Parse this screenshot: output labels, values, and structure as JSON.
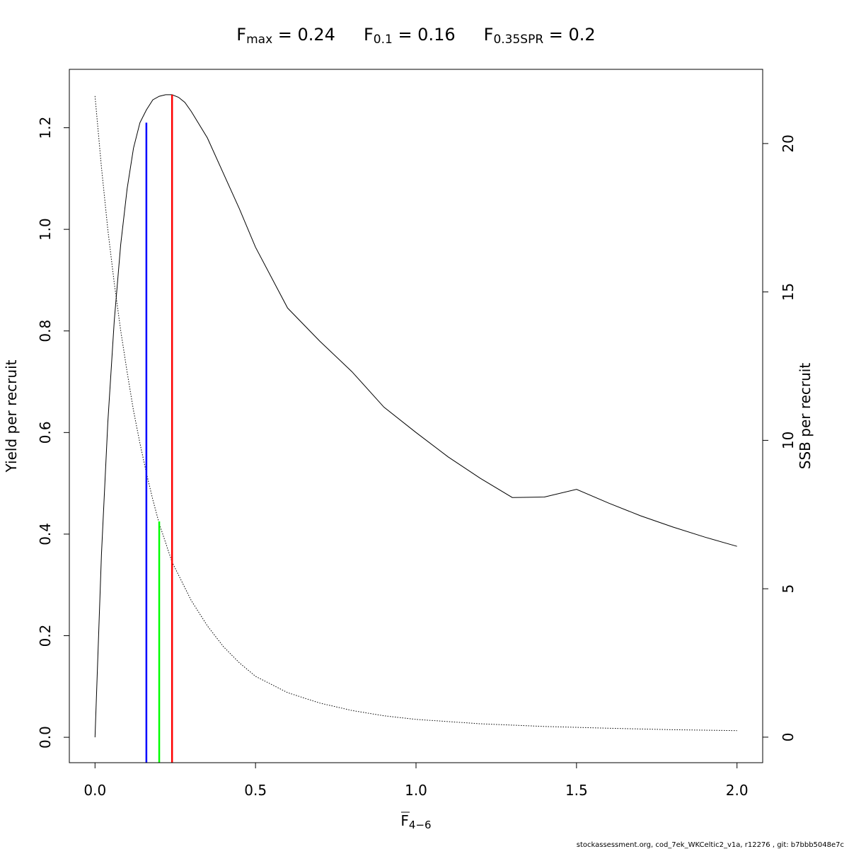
{
  "chart_data": {
    "type": "line",
    "title_parts": [
      {
        "base": "F",
        "sub": "max",
        "text": " = 0.24"
      },
      {
        "base": "F",
        "sub": "0.1",
        "text": " = 0.16"
      },
      {
        "base": "F",
        "sub": "0.35SPR",
        "text": " = 0.2"
      }
    ],
    "xlabel": {
      "base": "F",
      "sub": "4−6"
    },
    "ylabel": "Yield per recruit",
    "y2label": "SSB per recruit",
    "xlim": [
      -0.08,
      2.08
    ],
    "ylim": [
      -0.05,
      1.315
    ],
    "y2lim": [
      -0.86,
      22.5
    ],
    "xticks": [
      0.0,
      0.5,
      1.0,
      1.5,
      2.0
    ],
    "xtick_labels": [
      "0.0",
      "0.5",
      "1.0",
      "1.5",
      "2.0"
    ],
    "yticks": [
      0.0,
      0.2,
      0.4,
      0.6,
      0.8,
      1.0,
      1.2
    ],
    "ytick_labels": [
      "0.0",
      "0.2",
      "0.4",
      "0.6",
      "0.8",
      "1.0",
      "1.2"
    ],
    "y2ticks": [
      0,
      5,
      10,
      15,
      20
    ],
    "y2tick_labels": [
      "0",
      "5",
      "10",
      "15",
      "20"
    ],
    "grid": false,
    "series": [
      {
        "axis": "left",
        "style": "solid",
        "color": "#000000",
        "x": [
          0.0,
          0.02,
          0.04,
          0.06,
          0.08,
          0.1,
          0.12,
          0.14,
          0.16,
          0.18,
          0.2,
          0.22,
          0.24,
          0.26,
          0.28,
          0.3,
          0.35,
          0.4,
          0.45,
          0.5,
          0.6,
          0.7,
          0.8,
          0.9,
          1.0,
          1.1,
          1.2,
          1.3,
          1.4,
          1.5,
          1.6,
          1.7,
          1.8,
          1.9,
          2.0
        ],
        "y": [
          0.0,
          0.36,
          0.62,
          0.82,
          0.97,
          1.08,
          1.16,
          1.21,
          1.235,
          1.255,
          1.262,
          1.265,
          1.265,
          1.26,
          1.25,
          1.232,
          1.18,
          1.11,
          1.04,
          0.965,
          0.845,
          0.78,
          0.72,
          0.65,
          0.6,
          0.552,
          0.51,
          0.472,
          0.473,
          0.488,
          0.461,
          0.436,
          0.414,
          0.394,
          0.376
        ]
      },
      {
        "axis": "right",
        "style": "dotted",
        "color": "#000000",
        "x": [
          0.0,
          0.02,
          0.04,
          0.06,
          0.08,
          0.1,
          0.12,
          0.14,
          0.16,
          0.18,
          0.2,
          0.24,
          0.3,
          0.35,
          0.4,
          0.45,
          0.5,
          0.6,
          0.7,
          0.8,
          0.9,
          1.0,
          1.2,
          1.4,
          1.6,
          1.8,
          2.0
        ],
        "y": [
          21.6,
          19.2,
          17.1,
          15.3,
          13.7,
          12.3,
          11.0,
          9.9,
          8.9,
          8.0,
          7.2,
          5.9,
          4.6,
          3.75,
          3.05,
          2.5,
          2.05,
          1.5,
          1.15,
          0.9,
          0.72,
          0.6,
          0.45,
          0.36,
          0.3,
          0.25,
          0.22
        ]
      }
    ],
    "reference_lines": [
      {
        "name": "F0.1",
        "x": 0.16,
        "y": 1.21,
        "color": "#0000ff"
      },
      {
        "name": "F0.35SPR",
        "x": 0.2,
        "y": 0.425,
        "color": "#00ff00"
      },
      {
        "name": "Fmax",
        "x": 0.24,
        "y": 1.265,
        "color": "#ff0000"
      }
    ]
  },
  "footer": "stockassessment.org, cod_7ek_WKCeltic2_v1a, r12276 , git: b7bbb5048e7c"
}
